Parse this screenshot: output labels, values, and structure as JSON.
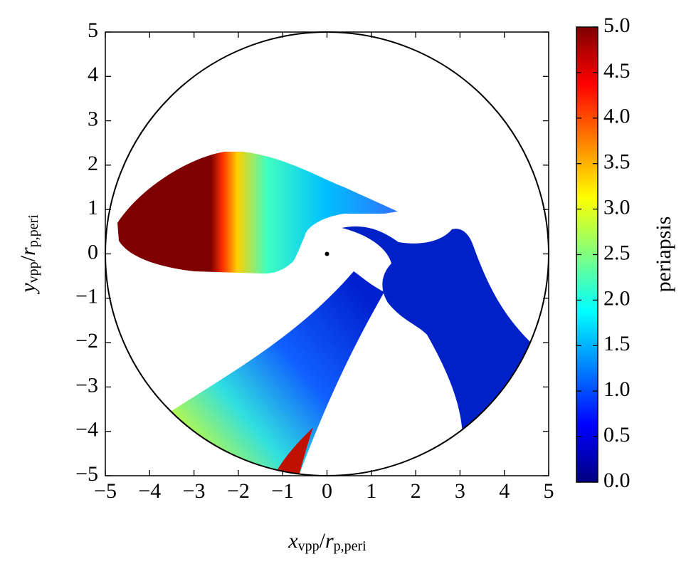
{
  "chart_data": {
    "type": "heatmap",
    "x_label": [
      "x",
      "vpp",
      "/",
      "r",
      "p,peri"
    ],
    "y_label": [
      "y",
      "vpp",
      "/",
      "r",
      "p,peri"
    ],
    "xlim": [
      -5,
      5
    ],
    "ylim": [
      -5,
      5
    ],
    "xticks": [
      {
        "value": -5,
        "label": "−5"
      },
      {
        "value": -4,
        "label": "−4"
      },
      {
        "value": -3,
        "label": "−3"
      },
      {
        "value": -2,
        "label": "−2"
      },
      {
        "value": -1,
        "label": "−1"
      },
      0,
      1,
      2,
      3,
      4,
      5
    ],
    "yticks": [
      {
        "value": -5,
        "label": "−5"
      },
      {
        "value": -4,
        "label": "−4"
      },
      {
        "value": -3,
        "label": "−3"
      },
      {
        "value": -2,
        "label": "−2"
      },
      {
        "value": -1,
        "label": "−1"
      },
      0,
      1,
      2,
      3,
      4,
      5
    ],
    "points": {
      "x": [
        0
      ],
      "y": [
        0
      ]
    },
    "colorbar": {
      "label": "periapsis",
      "cmap": "jet",
      "lim": [
        0,
        5
      ],
      "ticks": [
        {
          "value": 0,
          "label": "0.0"
        },
        {
          "value": 0.5,
          "label": "0.5"
        },
        {
          "value": 1,
          "label": "1.0"
        },
        {
          "value": 1.5,
          "label": "1.5"
        },
        {
          "value": 2,
          "label": "2.0"
        },
        {
          "value": 2.5,
          "label": "2.5"
        },
        {
          "value": 3,
          "label": "3.0"
        },
        {
          "value": 3.5,
          "label": "3.5"
        },
        {
          "value": 4,
          "label": "4.0"
        },
        {
          "value": 4.5,
          "label": "4.5"
        },
        {
          "value": 5,
          "label": "5.0"
        }
      ]
    }
  }
}
